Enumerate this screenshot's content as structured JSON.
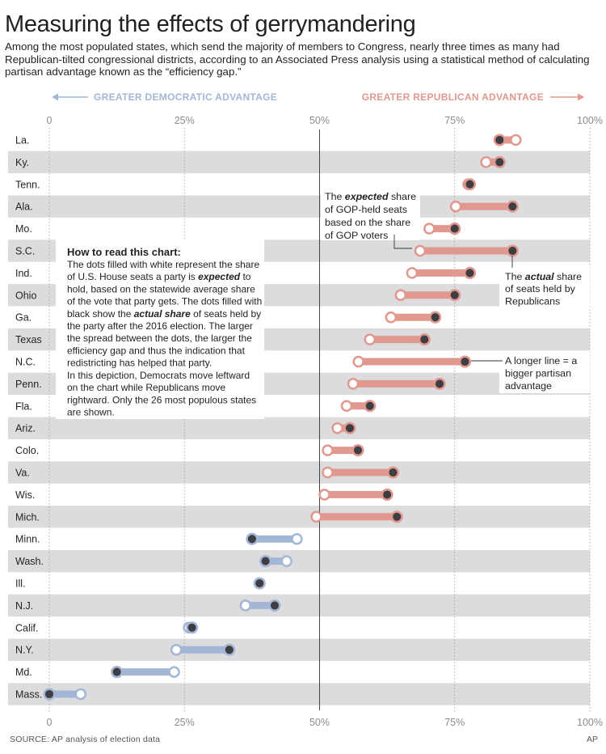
{
  "header": {
    "title": "Measuring the effects of gerrymandering",
    "subtitle": "Among the most populated states, which send the majority of members to Congress, nearly three times as many had Republican-tilted congressional districts, according to an Associated Press analysis using a statistical method of calculating partisan advantage known as the “efficiency gap.”"
  },
  "footer": {
    "source": "SOURCE: AP analysis of election data",
    "credit": "AP"
  },
  "colors": {
    "dem": "#a3b6d6",
    "rep": "#e0988f",
    "dot_fill": "#3d3d42",
    "band": "#dcdcde"
  },
  "chart_data": {
    "type": "dumbbell",
    "x_axis": {
      "range": [
        0,
        100
      ],
      "ticks": [
        0,
        25,
        50,
        75,
        100
      ],
      "tick_labels": [
        "0",
        "25%",
        "50%",
        "75%",
        "100%"
      ]
    },
    "direction_labels": {
      "left": "GREATER DEMOCRATIC ADVANTAGE",
      "right": "GREATER REPUBLICAN ADVANTAGE"
    },
    "rows": [
      {
        "state": "La.",
        "party": "rep",
        "expected": 86.3,
        "actual": 83.3
      },
      {
        "state": "Ky.",
        "party": "rep",
        "expected": 80.8,
        "actual": 83.3
      },
      {
        "state": "Tenn.",
        "party": "rep",
        "expected": 77.5,
        "actual": 77.8
      },
      {
        "state": "Ala.",
        "party": "rep",
        "expected": 75.2,
        "actual": 85.7
      },
      {
        "state": "Mo.",
        "party": "rep",
        "expected": 70.3,
        "actual": 75.0
      },
      {
        "state": "S.C.",
        "party": "rep",
        "expected": 68.6,
        "actual": 85.7
      },
      {
        "state": "Ind.",
        "party": "rep",
        "expected": 67.1,
        "actual": 77.8
      },
      {
        "state": "Ohio",
        "party": "rep",
        "expected": 65.0,
        "actual": 75.0
      },
      {
        "state": "Ga.",
        "party": "rep",
        "expected": 63.2,
        "actual": 71.4
      },
      {
        "state": "Texas",
        "party": "rep",
        "expected": 59.3,
        "actual": 69.4
      },
      {
        "state": "N.C.",
        "party": "rep",
        "expected": 57.2,
        "actual": 76.9
      },
      {
        "state": "Penn.",
        "party": "rep",
        "expected": 56.2,
        "actual": 72.2
      },
      {
        "state": "Fla.",
        "party": "rep",
        "expected": 55.0,
        "actual": 59.3
      },
      {
        "state": "Ariz.",
        "party": "rep",
        "expected": 53.3,
        "actual": 55.6
      },
      {
        "state": "Colo.",
        "party": "rep",
        "expected": 51.5,
        "actual": 57.1
      },
      {
        "state": "Va.",
        "party": "rep",
        "expected": 51.5,
        "actual": 63.6
      },
      {
        "state": "Wis.",
        "party": "rep",
        "expected": 50.9,
        "actual": 62.5
      },
      {
        "state": "Mich.",
        "party": "rep",
        "expected": 49.4,
        "actual": 64.3
      },
      {
        "state": "Minn.",
        "party": "dem",
        "expected": 45.8,
        "actual": 37.5
      },
      {
        "state": "Wash.",
        "party": "dem",
        "expected": 43.9,
        "actual": 40.0
      },
      {
        "state": "Ill.",
        "party": "dem",
        "expected": 38.9,
        "actual": 38.9
      },
      {
        "state": "N.J.",
        "party": "dem",
        "expected": 36.3,
        "actual": 41.7
      },
      {
        "state": "Calif.",
        "party": "dem",
        "expected": 25.8,
        "actual": 26.4
      },
      {
        "state": "N.Y.",
        "party": "dem",
        "expected": 23.5,
        "actual": 33.3
      },
      {
        "state": "Md.",
        "party": "dem",
        "expected": 23.1,
        "actual": 12.5
      },
      {
        "state": "Mass.",
        "party": "dem",
        "expected": 5.8,
        "actual": 0.0
      }
    ],
    "annotations": {
      "how_to_title": "How to read this chart:",
      "how_to_para1": [
        {
          "t": "The dots filled with white represent the share"
        },
        {
          "t": "of U.S. House seats a party is "
        },
        {
          "t": "expected",
          "i": true
        },
        {
          "t": " to"
        },
        {
          "t": "hold, based on the statewide average share"
        },
        {
          "t": "of the vote that party gets. The dots filled with"
        },
        {
          "t": "black show the "
        },
        {
          "t": "actual share",
          "i": true
        },
        {
          "t": " of seats held by"
        },
        {
          "t": "the party after the 2016 election. The larger"
        },
        {
          "t": "the spread between the dots, the larger the"
        },
        {
          "t": "efficiency gap and thus the indication that"
        },
        {
          "t": "redistricting has helped that party."
        }
      ],
      "how_to_para2": [
        "In this depiction, Democrats move leftward",
        "on the chart while Republicans move",
        "rightward. Only the 26 most populous states",
        "are shown."
      ],
      "expected_note": [
        "The ",
        "expected",
        " share",
        "of GOP-held seats",
        "based on the share",
        "of GOP voters"
      ],
      "actual_note": [
        "The ",
        "actual",
        " share",
        "of seats held by",
        "Republicans"
      ],
      "line_note": [
        "A longer line = a",
        "bigger partisan",
        "advantage"
      ]
    }
  }
}
